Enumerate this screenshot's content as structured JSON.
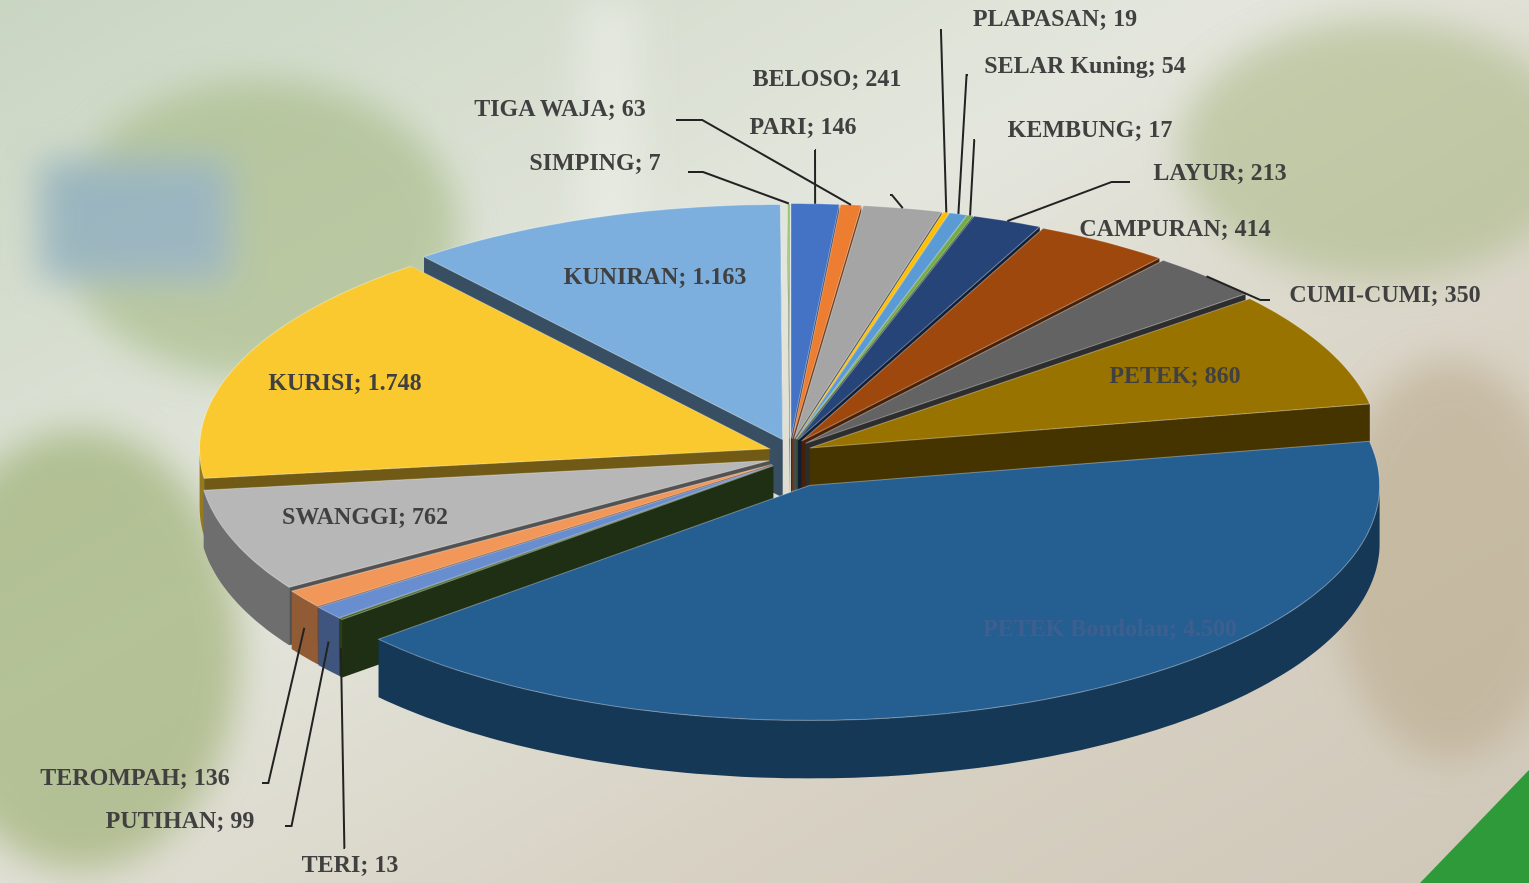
{
  "chart_data": {
    "type": "pie3d",
    "label_separator": "; ",
    "categories": [
      "PARI",
      "TIGA WAJA",
      "BELOSO",
      "PLAPASAN",
      "SELAR Kuning",
      "KEMBUNG",
      "LAYUR",
      "CAMPURAN",
      "CUMI-CUMI",
      "PETEK",
      "PETEK Bondolan",
      "TERI",
      "PUTIHAN",
      "TEROMPAH",
      "SWANGGI",
      "KURISI",
      "KUNIRAN",
      "SIMPING"
    ],
    "values": [
      146,
      63,
      241,
      19,
      54,
      17,
      213,
      414,
      350,
      860,
      4500,
      13,
      99,
      136,
      762,
      1748,
      1163,
      7
    ],
    "value_labels": [
      "146",
      "63",
      "241",
      "19",
      "54",
      "17",
      "213",
      "414",
      "350",
      "860",
      "4.500",
      "13",
      "99",
      "136",
      "762",
      "1.748",
      "1.163",
      "7"
    ],
    "colors": [
      "#4472c4",
      "#ed7d31",
      "#a5a5a5",
      "#ffc000",
      "#5b9bd5",
      "#70ad47",
      "#264478",
      "#9e480e",
      "#636363",
      "#997300",
      "#255e91",
      "#43682b",
      "#698ed0",
      "#f1975a",
      "#b7b7b7",
      "#f9c92f",
      "#7cafdd",
      "#8cc168"
    ]
  }
}
